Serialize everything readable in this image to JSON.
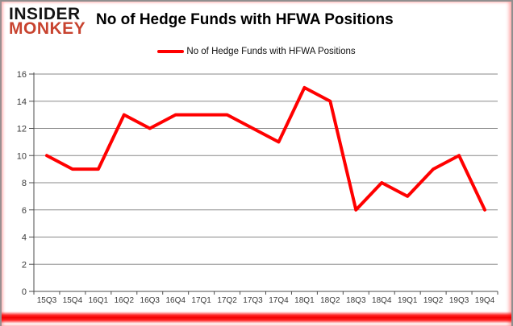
{
  "logo": {
    "line1": "INSIDER",
    "line2": "MONKEY"
  },
  "header": {
    "title": "No of Hedge Funds with HFWA Positions"
  },
  "legend": {
    "label": "No of Hedge Funds with HFWA Positions"
  },
  "colors": {
    "series_line": "#ff0000",
    "legend_marker": "#ff0000",
    "logo_accent": "#c8432f",
    "gridline": "#898989",
    "axis": "#4d4d4d",
    "tick_label": "#3a3a3a",
    "bottom_bar": "#f40000"
  },
  "chart_data": {
    "type": "line",
    "title": "No of Hedge Funds with HFWA Positions",
    "categories": [
      "15Q3",
      "15Q4",
      "16Q1",
      "16Q2",
      "16Q3",
      "16Q4",
      "17Q1",
      "17Q2",
      "17Q3",
      "17Q4",
      "18Q1",
      "18Q2",
      "18Q3",
      "18Q4",
      "19Q1",
      "19Q2",
      "19Q3",
      "19Q4"
    ],
    "series": [
      {
        "name": "No of Hedge Funds with HFWA Positions",
        "color": "#ff0000",
        "values": [
          10,
          9,
          9,
          13,
          12,
          13,
          13,
          13,
          12,
          11,
          15,
          14,
          6,
          8,
          7,
          9,
          10,
          6
        ]
      }
    ],
    "xlabel": "",
    "ylabel": "",
    "ylim": [
      0,
      16
    ],
    "yticks": [
      0,
      2,
      4,
      6,
      8,
      10,
      12,
      14,
      16
    ],
    "grid": true,
    "legend_position": "top-center"
  }
}
